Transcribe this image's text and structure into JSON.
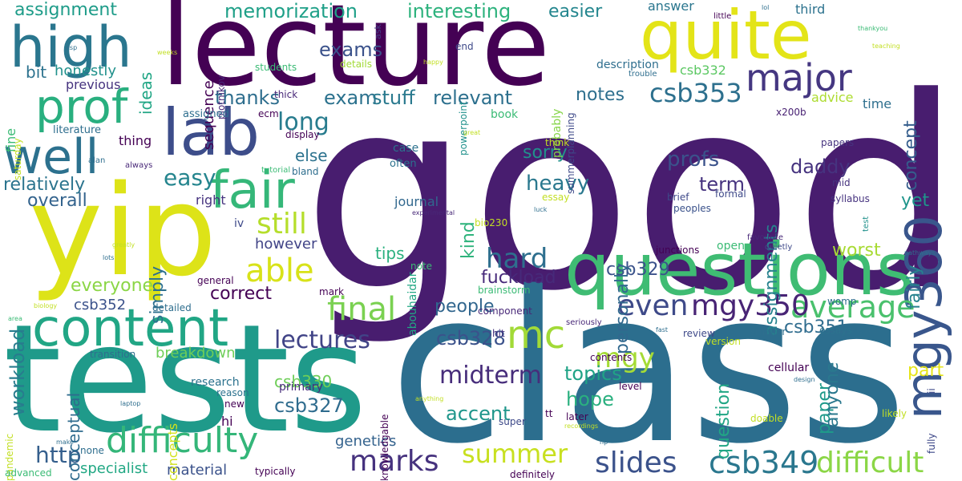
{
  "words": [
    {
      "text": "good",
      "color": "#481d6f"
    },
    {
      "text": "class",
      "color": "#2c6e8e"
    },
    {
      "text": "tests",
      "color": "#1f9a8a"
    },
    {
      "text": "lecture",
      "color": "#440154"
    },
    {
      "text": "yip",
      "color": "#dde318"
    },
    {
      "text": "questions",
      "color": "#3fbc73"
    },
    {
      "text": "quite",
      "color": "#e3e418"
    },
    {
      "text": "high",
      "color": "#2a768e"
    },
    {
      "text": "content",
      "color": "#21a685"
    },
    {
      "text": "lab",
      "color": "#3d4d8a"
    },
    {
      "text": "prof",
      "color": "#29af7f"
    },
    {
      "text": "well",
      "color": "#2c718e"
    },
    {
      "text": "fair",
      "color": "#35b779"
    },
    {
      "text": "mgy360",
      "color": "#39568c"
    },
    {
      "text": "difficulty",
      "color": "#34b679"
    },
    {
      "text": "major",
      "color": "#453781"
    },
    {
      "text": "final",
      "color": "#7ad151"
    },
    {
      "text": "mc",
      "color": "#a2da37"
    },
    {
      "text": "marks",
      "color": "#46327e"
    },
    {
      "text": "csb349",
      "color": "#2a778e"
    },
    {
      "text": "difficult",
      "color": "#8bd646"
    },
    {
      "text": "summer",
      "color": "#c8e020"
    },
    {
      "text": "slides",
      "color": "#3b528b"
    },
    {
      "text": "average",
      "color": "#4ac16d"
    },
    {
      "text": "able",
      "color": "#d8e219"
    },
    {
      "text": "still",
      "color": "#b5de2b"
    },
    {
      "text": "easy",
      "color": "#25858e"
    },
    {
      "text": "even",
      "color": "#3e4a89"
    },
    {
      "text": "mgy350",
      "color": "#482475"
    },
    {
      "text": "lectures",
      "color": "#414487"
    },
    {
      "text": "midterm",
      "color": "#472d7b"
    },
    {
      "text": "mgy",
      "color": "#a5db36"
    },
    {
      "text": "csb353",
      "color": "#2d708e"
    },
    {
      "text": "long",
      "color": "#287c8e"
    },
    {
      "text": "hard",
      "color": "#2e6f8e"
    },
    {
      "text": "profs",
      "color": "#3b528b"
    },
    {
      "text": "exams",
      "color": "#3b528b"
    },
    {
      "text": "exam",
      "color": "#2c728e"
    },
    {
      "text": "stuff",
      "color": "#29798e"
    },
    {
      "text": "relevant",
      "color": "#2d708e"
    },
    {
      "text": "memorization",
      "color": "#1fa088"
    },
    {
      "text": "interesting",
      "color": "#2db27d"
    },
    {
      "text": "easier",
      "color": "#24868e"
    },
    {
      "text": "assignment",
      "color": "#1e9c89"
    },
    {
      "text": "workload",
      "color": "#287c8e"
    },
    {
      "text": "accent",
      "color": "#1f968b"
    },
    {
      "text": "csb328",
      "color": "#3b528b"
    },
    {
      "text": "topics",
      "color": "#20a386"
    },
    {
      "text": "hope",
      "color": "#2ab07f"
    },
    {
      "text": "heavy",
      "color": "#2a788e"
    },
    {
      "text": "daddy",
      "color": "#46337f"
    },
    {
      "text": "term",
      "color": "#46337f"
    },
    {
      "text": "http",
      "color": "#355f8d"
    },
    {
      "text": "everyone",
      "color": "#8bd646"
    },
    {
      "text": "correct",
      "color": "#440154"
    },
    {
      "text": "csb327",
      "color": "#2f6c8e"
    },
    {
      "text": "csb329",
      "color": "#3b528b"
    },
    {
      "text": "csb351",
      "color": "#2f6c8e"
    },
    {
      "text": "people",
      "color": "#31668e"
    },
    {
      "text": "fuckload",
      "color": "#472a7a"
    },
    {
      "text": "overall",
      "color": "#33638d"
    },
    {
      "text": "relatively",
      "color": "#2b748e"
    },
    {
      "text": "thanks",
      "color": "#2e6e8e"
    },
    {
      "text": "notes",
      "color": "#2e6f8e"
    },
    {
      "text": "sorry",
      "color": "#21918c"
    },
    {
      "text": "kind",
      "color": "#2eb37c"
    },
    {
      "text": "personally",
      "color": "#31688e"
    },
    {
      "text": "assignments",
      "color": "#26828e"
    },
    {
      "text": "fairly",
      "color": "#26828e"
    },
    {
      "text": "concept",
      "color": "#355e8d"
    },
    {
      "text": "yet",
      "color": "#1f958b"
    },
    {
      "text": "worst",
      "color": "#a8db34"
    },
    {
      "text": "part",
      "color": "#e5e419"
    },
    {
      "text": "paper",
      "color": "#1f9a8a"
    },
    {
      "text": "anyone",
      "color": "#2a788e"
    },
    {
      "text": "question",
      "color": "#21a685"
    },
    {
      "text": "genetics",
      "color": "#33628d"
    },
    {
      "text": "conceptual",
      "color": "#2f6b8e"
    },
    {
      "text": "simply",
      "color": "#2d708e"
    },
    {
      "text": "tips",
      "color": "#2ab07f"
    },
    {
      "text": "however",
      "color": "#414487"
    },
    {
      "text": "csb352",
      "color": "#3b528b"
    },
    {
      "text": "csb330",
      "color": "#6ece58"
    },
    {
      "text": "specialist",
      "color": "#22a884"
    },
    {
      "text": "material",
      "color": "#3b528b"
    },
    {
      "text": "primary",
      "color": "#472d7b"
    },
    {
      "text": "breakdown",
      "color": "#6ece58"
    },
    {
      "text": "concepts",
      "color": "#d2e21b"
    },
    {
      "text": "research",
      "color": "#2c728e"
    },
    {
      "text": "bit",
      "color": "#2c728e"
    },
    {
      "text": "honestly",
      "color": "#21918c"
    },
    {
      "text": "previous",
      "color": "#46337f"
    },
    {
      "text": "ideas",
      "color": "#21a685"
    },
    {
      "text": "sequence",
      "color": "#440154"
    },
    {
      "text": "plotnikov",
      "color": "#482878"
    },
    {
      "text": "ask",
      "color": "#433e85"
    },
    {
      "text": "answer",
      "color": "#2a768e"
    },
    {
      "text": "third",
      "color": "#2c728e"
    },
    {
      "text": "time",
      "color": "#2e6f8e"
    },
    {
      "text": "csb332",
      "color": "#5cc863"
    },
    {
      "text": "advice",
      "color": "#addc30"
    },
    {
      "text": "x200b",
      "color": "#482173"
    },
    {
      "text": "literature",
      "color": "#2e6e8e"
    },
    {
      "text": "thing",
      "color": "#440154"
    },
    {
      "text": "else",
      "color": "#2c728e"
    },
    {
      "text": "journal",
      "color": "#31688e"
    },
    {
      "text": "abouhaidar",
      "color": "#22a884"
    },
    {
      "text": "probably",
      "color": "#86d549"
    },
    {
      "text": "summerplanning",
      "color": "#3e4989"
    },
    {
      "text": "description",
      "color": "#2e6e8e"
    },
    {
      "text": "powerpoint",
      "color": "#21918c"
    },
    {
      "text": "book",
      "color": "#3bbb75"
    },
    {
      "text": "details",
      "color": "#a2da37"
    },
    {
      "text": "students",
      "color": "#3bbb75"
    },
    {
      "text": "end",
      "color": "#3e4989"
    },
    {
      "text": "trouble",
      "color": "#2e6e8e"
    },
    {
      "text": "case",
      "color": "#2c728e"
    },
    {
      "text": "often",
      "color": "#2c728e"
    },
    {
      "text": "think",
      "color": "#c2df23"
    },
    {
      "text": "essay",
      "color": "#c2df23"
    },
    {
      "text": "brief",
      "color": "#3e4989"
    },
    {
      "text": "peoples",
      "color": "#3b528b"
    },
    {
      "text": "formal",
      "color": "#3e4989"
    },
    {
      "text": "syllabus",
      "color": "#46337f"
    },
    {
      "text": "mid",
      "color": "#46337f"
    },
    {
      "text": "papers",
      "color": "#46337f"
    },
    {
      "text": "test",
      "color": "#21918c"
    },
    {
      "text": "open",
      "color": "#3bbb75"
    },
    {
      "text": "favourite",
      "color": "#482878"
    },
    {
      "text": "quietly",
      "color": "#3e4989"
    },
    {
      "text": "junctions",
      "color": "#440154"
    },
    {
      "text": "display",
      "color": "#440154"
    },
    {
      "text": "ecm",
      "color": "#440154"
    },
    {
      "text": "thick",
      "color": "#482878"
    },
    {
      "text": "assigned",
      "color": "#2e6e8e"
    },
    {
      "text": "fine",
      "color": "#3bbb75"
    },
    {
      "text": "saturday",
      "color": "#c2df23"
    },
    {
      "text": "alan",
      "color": "#2e6e8e"
    },
    {
      "text": "always",
      "color": "#482878"
    },
    {
      "text": "tutorial",
      "color": "#3bbb75"
    },
    {
      "text": "bland",
      "color": "#2e6e8e"
    },
    {
      "text": "right",
      "color": "#46337f"
    },
    {
      "text": "iv",
      "color": "#3e4989"
    },
    {
      "text": "general",
      "color": "#440154"
    },
    {
      "text": "mark",
      "color": "#440154"
    },
    {
      "text": "brainstorm",
      "color": "#3bbb75"
    },
    {
      "text": "note",
      "color": "#3bbb75"
    },
    {
      "text": "bio230",
      "color": "#c2df23"
    },
    {
      "text": "experimental",
      "color": "#482878"
    },
    {
      "text": "component",
      "color": "#482878"
    },
    {
      "text": "luck",
      "color": "#2e6e8e"
    },
    {
      "text": "seriously",
      "color": "#482878"
    },
    {
      "text": "hit",
      "color": "#46337f"
    },
    {
      "text": "review",
      "color": "#3e4989"
    },
    {
      "text": "fast",
      "color": "#2e6e8e"
    },
    {
      "text": "smaller",
      "color": "#2e6e8e"
    },
    {
      "text": "essays",
      "color": "#2c728e"
    },
    {
      "text": "moses",
      "color": "#2e6e8e"
    },
    {
      "text": "womp",
      "color": "#2e6e8e"
    },
    {
      "text": "version",
      "color": "#c2df23"
    },
    {
      "text": "contents",
      "color": "#440154"
    },
    {
      "text": "cellular",
      "color": "#440154"
    },
    {
      "text": "level",
      "color": "#440154"
    },
    {
      "text": "design",
      "color": "#2e6e8e"
    },
    {
      "text": "fully",
      "color": "#3e4989"
    },
    {
      "text": "ii",
      "color": "#3e4989"
    },
    {
      "text": "likely",
      "color": "#c2df23"
    },
    {
      "text": "doable",
      "color": "#c2df23"
    },
    {
      "text": "later",
      "color": "#440154"
    },
    {
      "text": "recordings",
      "color": "#c2df23"
    },
    {
      "text": "np",
      "color": "#2e6e8e"
    },
    {
      "text": "tt",
      "color": "#440154"
    },
    {
      "text": "super",
      "color": "#3e4989"
    },
    {
      "text": "anything",
      "color": "#c2df23"
    },
    {
      "text": "definitely",
      "color": "#440154"
    },
    {
      "text": "knowledgable",
      "color": "#440154"
    },
    {
      "text": "typically",
      "color": "#440154"
    },
    {
      "text": "none",
      "color": "#2e6e8e"
    },
    {
      "text": "hi",
      "color": "#440154"
    },
    {
      "text": "new",
      "color": "#440154"
    },
    {
      "text": "reason",
      "color": "#2c728e"
    },
    {
      "text": "transition",
      "color": "#2e6e8e"
    },
    {
      "text": "detailed",
      "color": "#2e6e8e"
    },
    {
      "text": "laptop",
      "color": "#2e6e8e"
    },
    {
      "text": "make",
      "color": "#2e6e8e"
    },
    {
      "text": "pandemic",
      "color": "#c2df23"
    },
    {
      "text": "advanced",
      "color": "#3bbb75"
    },
    {
      "text": "area",
      "color": "#3bbb75"
    },
    {
      "text": "biology",
      "color": "#c2df23"
    },
    {
      "text": "greatly",
      "color": "#c2df23"
    },
    {
      "text": "lots",
      "color": "#2e6e8e"
    },
    {
      "text": "esp",
      "color": "#2e6e8e"
    },
    {
      "text": "weeks",
      "color": "#c2df23"
    },
    {
      "text": "little",
      "color": "#440154"
    },
    {
      "text": "lol",
      "color": "#2e6e8e"
    },
    {
      "text": "thankyou",
      "color": "#3bbb75"
    },
    {
      "text": "teaching",
      "color": "#c2df23"
    },
    {
      "text": "pathways",
      "color": "#2e6e8e"
    },
    {
      "text": "happy",
      "color": "#c2df23"
    },
    {
      "text": "great",
      "color": "#c2df23"
    }
  ]
}
